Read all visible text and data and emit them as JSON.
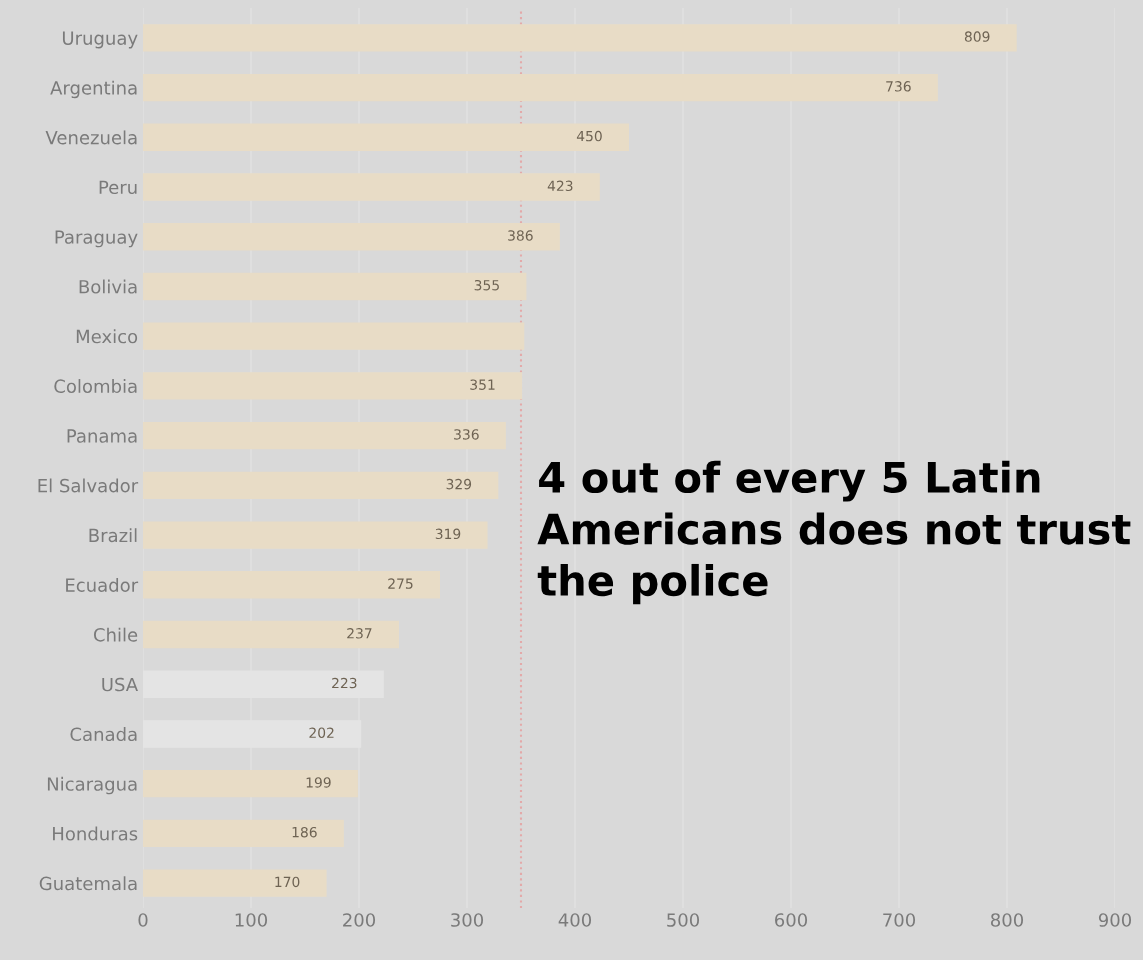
{
  "chart_data": {
    "type": "bar",
    "orientation": "horizontal",
    "title": "4 out of every 5 Latin Americans does not trust the police",
    "categories": [
      "Uruguay",
      "Argentina",
      "Venezuela",
      "Peru",
      "Paraguay",
      "Bolivia",
      "Mexico",
      "Colombia",
      "Panama",
      "El Salvador",
      "Brazil",
      "Ecuador",
      "Chile",
      "USA",
      "Canada",
      "Nicaragua",
      "Honduras",
      "Guatemala"
    ],
    "values": [
      809,
      736,
      450,
      423,
      386,
      355,
      353,
      351,
      336,
      329,
      319,
      275,
      237,
      223,
      202,
      199,
      186,
      170
    ],
    "value_labels": [
      "809",
      "736",
      "450",
      "423",
      "386",
      "355",
      null,
      "351",
      "336",
      "329",
      "319",
      "275",
      "237",
      "223",
      "202",
      "199",
      "186",
      "170"
    ],
    "colors": [
      "#e8dcc6",
      "#e8dcc6",
      "#e8dcc6",
      "#e8dcc6",
      "#e8dcc6",
      "#e8dcc6",
      "#e8dcc6",
      "#e8dcc6",
      "#e8dcc6",
      "#e8dcc6",
      "#e8dcc6",
      "#e8dcc6",
      "#e8dcc6",
      "#e4e4e4",
      "#e4e4e4",
      "#e8dcc6",
      "#e8dcc6",
      "#e8dcc6"
    ],
    "xlim": [
      0,
      900
    ],
    "xticks": [
      0,
      100,
      200,
      300,
      400,
      500,
      600,
      700,
      800,
      900
    ],
    "ref_lines": [
      {
        "axis": "x",
        "value": 350,
        "color": "#e3a9a9",
        "line_style": "dotted"
      }
    ],
    "grid": "x",
    "legend": false
  }
}
